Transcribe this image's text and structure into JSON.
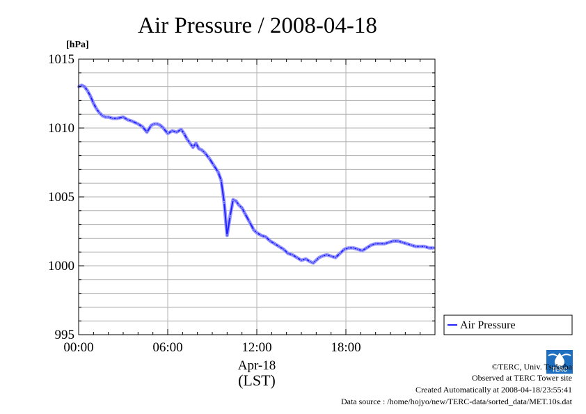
{
  "chart_data": {
    "type": "line",
    "title": "Air Pressure / 2008-04-18",
    "unit_label": "[hPa]",
    "ylim": [
      995,
      1015
    ],
    "yticks": [
      995,
      1000,
      1005,
      1010,
      1015
    ],
    "xlim": [
      0,
      24
    ],
    "xticks": [
      0,
      6,
      12,
      18
    ],
    "xtick_labels": [
      "00:00",
      "06:00",
      "12:00",
      "18:00"
    ],
    "xlabel_date": "Apr-18",
    "xlabel_tz": "(LST)",
    "grid": true,
    "legend_position": "right-bottom",
    "series": [
      {
        "name": "Air Pressure",
        "color": "#2222ff",
        "x": [
          0,
          0.2,
          0.4,
          0.6,
          0.8,
          1.0,
          1.2,
          1.4,
          1.6,
          1.8,
          2.0,
          2.3,
          2.6,
          3.0,
          3.3,
          3.6,
          4.0,
          4.3,
          4.6,
          4.9,
          5.1,
          5.3,
          5.5,
          5.7,
          6.0,
          6.3,
          6.6,
          6.9,
          7.1,
          7.3,
          7.5,
          7.7,
          7.9,
          8.1,
          8.3,
          8.5,
          8.8,
          9.1,
          9.4,
          9.6,
          9.8,
          10.0,
          10.2,
          10.4,
          10.6,
          10.8,
          11.0,
          11.2,
          11.5,
          11.8,
          12.0,
          12.3,
          12.6,
          12.9,
          13.2,
          13.5,
          13.8,
          14.1,
          14.4,
          14.7,
          15.0,
          15.3,
          15.6,
          15.8,
          16.0,
          16.2,
          16.4,
          16.7,
          17.0,
          17.3,
          17.6,
          17.9,
          18.2,
          18.5,
          18.8,
          19.1,
          19.4,
          19.7,
          20.0,
          20.3,
          20.6,
          20.9,
          21.2,
          21.5,
          21.8,
          22.1,
          22.4,
          22.7,
          23.0,
          23.3,
          23.6,
          23.9
        ],
        "values": [
          1013.0,
          1013.1,
          1013.0,
          1012.7,
          1012.3,
          1011.8,
          1011.4,
          1011.1,
          1010.9,
          1010.8,
          1010.8,
          1010.7,
          1010.7,
          1010.8,
          1010.6,
          1010.5,
          1010.3,
          1010.1,
          1009.7,
          1010.2,
          1010.3,
          1010.3,
          1010.2,
          1010.0,
          1009.6,
          1009.8,
          1009.7,
          1009.9,
          1009.6,
          1009.2,
          1008.9,
          1008.6,
          1008.9,
          1008.5,
          1008.4,
          1008.2,
          1007.8,
          1007.3,
          1006.8,
          1006.2,
          1004.6,
          1002.2,
          1003.6,
          1004.8,
          1004.7,
          1004.4,
          1004.2,
          1003.8,
          1003.2,
          1002.6,
          1002.4,
          1002.2,
          1002.1,
          1001.8,
          1001.6,
          1001.4,
          1001.2,
          1000.9,
          1000.8,
          1000.6,
          1000.4,
          1000.5,
          1000.3,
          1000.2,
          1000.4,
          1000.6,
          1000.7,
          1000.8,
          1000.7,
          1000.6,
          1000.9,
          1001.2,
          1001.3,
          1001.3,
          1001.2,
          1001.1,
          1001.3,
          1001.5,
          1001.6,
          1001.6,
          1001.6,
          1001.7,
          1001.8,
          1001.8,
          1001.7,
          1001.6,
          1001.5,
          1001.4,
          1001.4,
          1001.4,
          1001.3,
          1001.3
        ]
      }
    ]
  },
  "footer": {
    "copyright": "©TERC, Univ. Tsukuba",
    "observed": "Observed at TERC Tower site",
    "created": "Created Automatically at 2008-04-18/23:55:41",
    "source": "Data source : /home/hojyo/new/TERC-data/sorted_data/MET.10s.dat",
    "logo_text": "TERC"
  }
}
